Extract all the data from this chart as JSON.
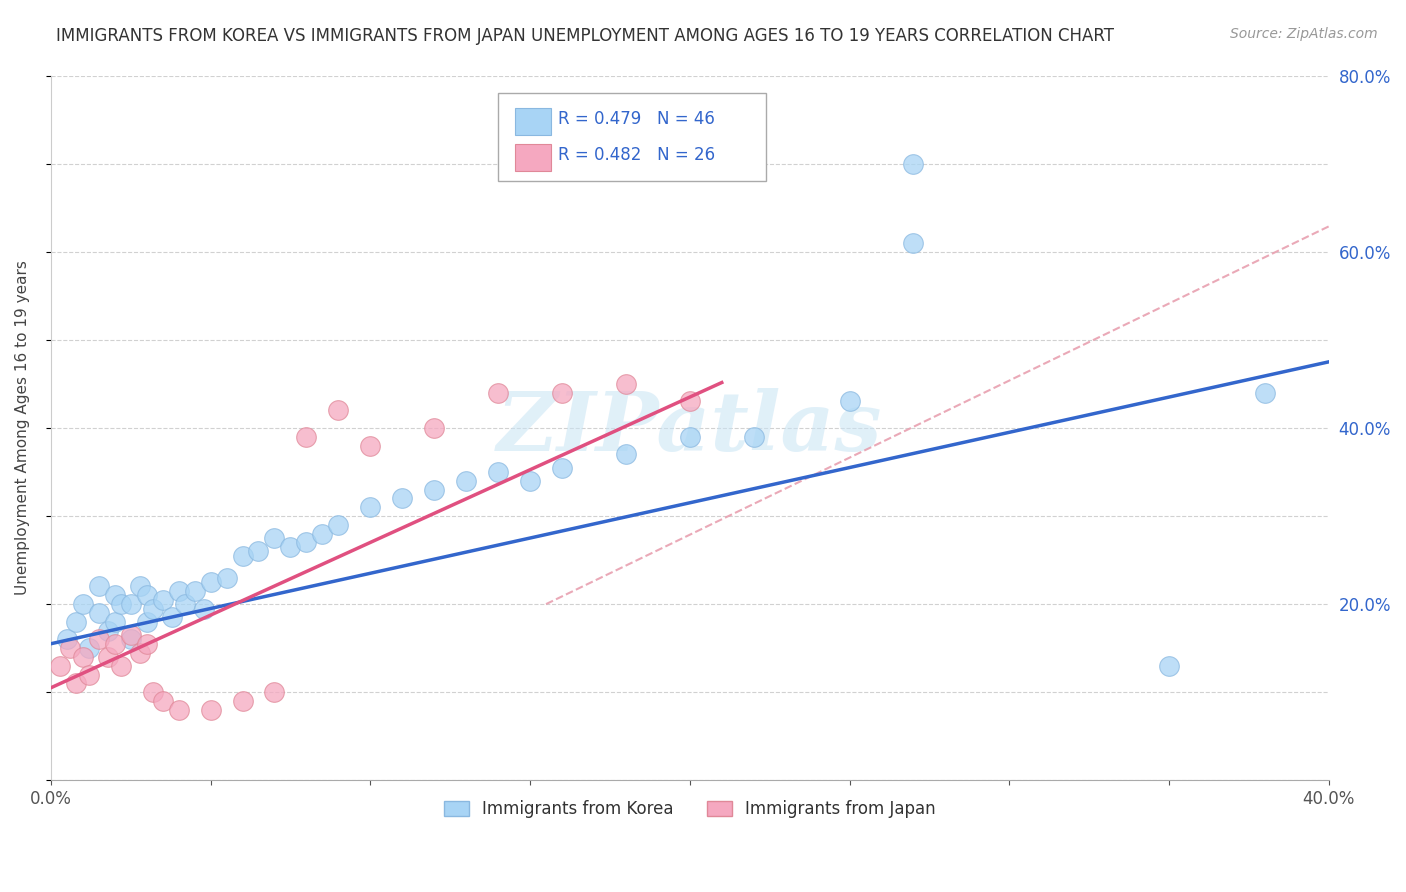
{
  "title": "IMMIGRANTS FROM KOREA VS IMMIGRANTS FROM JAPAN UNEMPLOYMENT AMONG AGES 16 TO 19 YEARS CORRELATION CHART",
  "source": "Source: ZipAtlas.com",
  "ylabel": "Unemployment Among Ages 16 to 19 years",
  "legend_label1": "Immigrants from Korea",
  "legend_label2": "Immigrants from Japan",
  "R1": 0.479,
  "N1": 46,
  "R2": 0.482,
  "N2": 26,
  "xlim": [
    0.0,
    0.4
  ],
  "ylim": [
    0.0,
    0.8
  ],
  "color_korea": "#a8d4f5",
  "color_japan": "#f5a8c0",
  "line_color_korea": "#3366cc",
  "line_color_japan": "#e05080",
  "dash_color": "#e8a0b0",
  "watermark": "ZIPatlas",
  "korea_x": [
    0.005,
    0.008,
    0.01,
    0.012,
    0.015,
    0.015,
    0.018,
    0.02,
    0.02,
    0.022,
    0.025,
    0.025,
    0.028,
    0.03,
    0.03,
    0.032,
    0.035,
    0.038,
    0.04,
    0.042,
    0.045,
    0.048,
    0.05,
    0.055,
    0.06,
    0.065,
    0.07,
    0.075,
    0.08,
    0.085,
    0.09,
    0.1,
    0.11,
    0.12,
    0.13,
    0.14,
    0.15,
    0.16,
    0.18,
    0.2,
    0.22,
    0.25,
    0.27,
    0.27,
    0.35,
    0.38
  ],
  "korea_y": [
    0.16,
    0.18,
    0.2,
    0.15,
    0.19,
    0.22,
    0.17,
    0.21,
    0.18,
    0.2,
    0.16,
    0.2,
    0.22,
    0.18,
    0.21,
    0.195,
    0.205,
    0.185,
    0.215,
    0.2,
    0.215,
    0.195,
    0.225,
    0.23,
    0.255,
    0.26,
    0.275,
    0.265,
    0.27,
    0.28,
    0.29,
    0.31,
    0.32,
    0.33,
    0.34,
    0.35,
    0.34,
    0.355,
    0.37,
    0.39,
    0.39,
    0.43,
    0.7,
    0.61,
    0.13,
    0.44
  ],
  "japan_x": [
    0.003,
    0.006,
    0.008,
    0.01,
    0.012,
    0.015,
    0.018,
    0.02,
    0.022,
    0.025,
    0.028,
    0.03,
    0.032,
    0.035,
    0.04,
    0.05,
    0.06,
    0.07,
    0.08,
    0.09,
    0.1,
    0.12,
    0.14,
    0.16,
    0.18,
    0.2
  ],
  "japan_y": [
    0.13,
    0.15,
    0.11,
    0.14,
    0.12,
    0.16,
    0.14,
    0.155,
    0.13,
    0.165,
    0.145,
    0.155,
    0.1,
    0.09,
    0.08,
    0.08,
    0.09,
    0.1,
    0.39,
    0.42,
    0.38,
    0.4,
    0.44,
    0.44,
    0.45,
    0.43
  ]
}
